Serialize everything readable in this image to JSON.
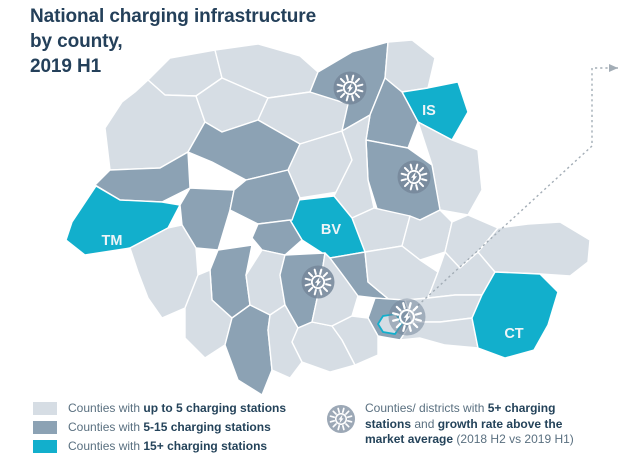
{
  "title": {
    "line1": "National charging infrastructure",
    "line2": "by county,",
    "line3": "2019 H1"
  },
  "colors": {
    "low": "#d6dde4",
    "mid": "#8ca2b4",
    "high": "#12afcc",
    "icon_circle": "#76879a",
    "map_border": "#ffffff",
    "title_text": "#24405a",
    "legend_text": "#5a7080",
    "legend_bold_text": "#24435a",
    "callout_line": "#a3adb6",
    "county_label_text": "#eef4f7"
  },
  "legend": {
    "items": [
      {
        "level": "low",
        "prefix": "Counties with ",
        "bold": "up to 5 charging stations"
      },
      {
        "level": "mid",
        "prefix": "Counties with ",
        "bold": "5-15 charging stations"
      },
      {
        "level": "high",
        "prefix": "Counties with ",
        "bold": "15+ charging stations"
      }
    ],
    "growth": {
      "icon": "spark-burst-icon",
      "s0": "Counties/ districts with ",
      "s1": "5+ charging stations",
      "s2": " and ",
      "s3": "growth rate above the market average",
      "s4": " (2018 H2 vs 2019 H1)"
    }
  },
  "map": {
    "counties": [
      {
        "id": "satu-mare",
        "level": "low"
      },
      {
        "id": "maramures",
        "level": "low"
      },
      {
        "id": "bihor",
        "level": "low"
      },
      {
        "id": "salaj",
        "level": "low"
      },
      {
        "id": "bistrita-nasaud",
        "level": "low"
      },
      {
        "id": "cluj",
        "level": "mid"
      },
      {
        "id": "suceava",
        "level": "mid"
      },
      {
        "id": "botosani",
        "level": "low"
      },
      {
        "id": "iasi",
        "level": "high",
        "label": "IS"
      },
      {
        "id": "neamt",
        "level": "mid"
      },
      {
        "id": "vaslui",
        "level": "low"
      },
      {
        "id": "bacau",
        "level": "mid"
      },
      {
        "id": "mures",
        "level": "low"
      },
      {
        "id": "harghita",
        "level": "low"
      },
      {
        "id": "covasna",
        "level": "low"
      },
      {
        "id": "brasov",
        "level": "high",
        "label": "BV"
      },
      {
        "id": "vrancea",
        "level": "low"
      },
      {
        "id": "galati",
        "level": "low"
      },
      {
        "id": "arad",
        "level": "mid"
      },
      {
        "id": "timis",
        "level": "high",
        "label": "TM"
      },
      {
        "id": "hunedoara",
        "level": "mid"
      },
      {
        "id": "alba",
        "level": "mid"
      },
      {
        "id": "sibiu",
        "level": "mid"
      },
      {
        "id": "caras-severin",
        "level": "low"
      },
      {
        "id": "gorj",
        "level": "mid"
      },
      {
        "id": "valcea",
        "level": "low"
      },
      {
        "id": "arges",
        "level": "mid"
      },
      {
        "id": "mehedinti",
        "level": "low"
      },
      {
        "id": "dolj",
        "level": "mid"
      },
      {
        "id": "olt",
        "level": "low"
      },
      {
        "id": "teleorman",
        "level": "low"
      },
      {
        "id": "dambovita",
        "level": "low"
      },
      {
        "id": "prahova",
        "level": "mid"
      },
      {
        "id": "buzau",
        "level": "low"
      },
      {
        "id": "braila",
        "level": "low"
      },
      {
        "id": "ialomita",
        "level": "low"
      },
      {
        "id": "calarasi",
        "level": "low"
      },
      {
        "id": "ilfov",
        "level": "mid"
      },
      {
        "id": "bucuresti",
        "level": "low",
        "outlined": true
      },
      {
        "id": "giurgiu",
        "level": "low"
      },
      {
        "id": "tulcea",
        "level": "low"
      },
      {
        "id": "constanta",
        "level": "high",
        "label": "CT"
      }
    ],
    "markers": [
      "suceava",
      "bacau",
      "arges",
      "bucuresti"
    ]
  }
}
